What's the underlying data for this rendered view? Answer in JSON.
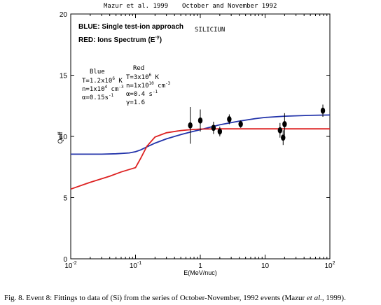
{
  "header": {
    "left": "Mazur et al. 1999",
    "right": "October and November 1992"
  },
  "caption": {
    "prefix": "Fig. 8. Event 8:  Fittings to data of  (Si) from the series of October-November, 1992 events (Mazur ",
    "etal": "et al.",
    "suffix": ", 1999)."
  },
  "legend": {
    "blue_label": "BLUE: Single test-ion approach",
    "red_label": "RED: Ions Spectrum (E",
    "red_exp": "-γ",
    "red_close": ")",
    "element": "SILICIUN"
  },
  "params": {
    "blue": {
      "heading": "Blue",
      "lines": [
        {
          "base": "T=1.2x10",
          "sup": "6",
          "tail": " K"
        },
        {
          "base": "n=1x10",
          "sup": "4",
          "tail": " cm",
          "sup2": "-3"
        },
        {
          "base": "α=0.15s",
          "sup": "-1",
          "tail": ""
        }
      ]
    },
    "red": {
      "heading": "Red",
      "lines": [
        {
          "base": "T=3x10",
          "sup": "6",
          "tail": " K"
        },
        {
          "base": "n=1x10",
          "sup": "10",
          "tail": " cm",
          "sup2": "-3"
        },
        {
          "base": "α=0.4 s",
          "sup": "-1",
          "tail": ""
        },
        {
          "base": "γ=1.6",
          "sup": "",
          "tail": ""
        }
      ]
    }
  },
  "chart_data": {
    "type": "line",
    "title": "",
    "xlabel": "E(MeV/nuc)",
    "ylabel": "Qeff",
    "xscale": "log",
    "xlim": [
      0.01,
      100
    ],
    "ylim": [
      0,
      20
    ],
    "xticks": [
      0.01,
      0.1,
      1,
      10,
      100
    ],
    "xtick_labels": [
      {
        "base": "10",
        "exp": "-2"
      },
      {
        "base": "10",
        "exp": "-1"
      },
      {
        "base": "1",
        "exp": ""
      },
      {
        "base": "10",
        "exp": ""
      },
      {
        "base": "10",
        "exp": "2"
      }
    ],
    "yticks": [
      0,
      5,
      10,
      15,
      20
    ],
    "series": [
      {
        "color": "#2233aa",
        "x": [
          0.01,
          0.03,
          0.05,
          0.08,
          0.1,
          0.12,
          0.15,
          0.2,
          0.3,
          0.5,
          0.7,
          1,
          2,
          4,
          7,
          10,
          20,
          50,
          100
        ],
        "y": [
          8.55,
          8.55,
          8.58,
          8.65,
          8.75,
          8.9,
          9.15,
          9.45,
          9.8,
          10.15,
          10.35,
          10.55,
          10.95,
          11.25,
          11.45,
          11.55,
          11.65,
          11.72,
          11.75
        ]
      },
      {
        "color": "#dd2222",
        "x": [
          0.01,
          0.02,
          0.04,
          0.06,
          0.08,
          0.1,
          0.12,
          0.15,
          0.2,
          0.3,
          0.5,
          0.7,
          1,
          2,
          5,
          10,
          100
        ],
        "y": [
          5.7,
          6.25,
          6.75,
          7.1,
          7.3,
          7.45,
          8.2,
          9.2,
          9.95,
          10.3,
          10.48,
          10.55,
          10.6,
          10.62,
          10.62,
          10.62,
          10.62
        ]
      }
    ],
    "points": [
      {
        "x": 0.7,
        "y": 10.9,
        "err": 1.5
      },
      {
        "x": 1.0,
        "y": 11.3,
        "err": 0.9
      },
      {
        "x": 1.6,
        "y": 10.7,
        "err": 0.5
      },
      {
        "x": 2.0,
        "y": 10.4,
        "err": 0.4
      },
      {
        "x": 2.8,
        "y": 11.4,
        "err": 0.4
      },
      {
        "x": 4.2,
        "y": 11.0,
        "err": 0.3
      },
      {
        "x": 17,
        "y": 10.5,
        "err": 0.6
      },
      {
        "x": 19,
        "y": 9.9,
        "err": 0.6
      },
      {
        "x": 20,
        "y": 11.0,
        "err": 0.9
      },
      {
        "x": 78,
        "y": 12.1,
        "err": 0.5
      }
    ],
    "grid": false,
    "legend": "top-left (inside)"
  }
}
